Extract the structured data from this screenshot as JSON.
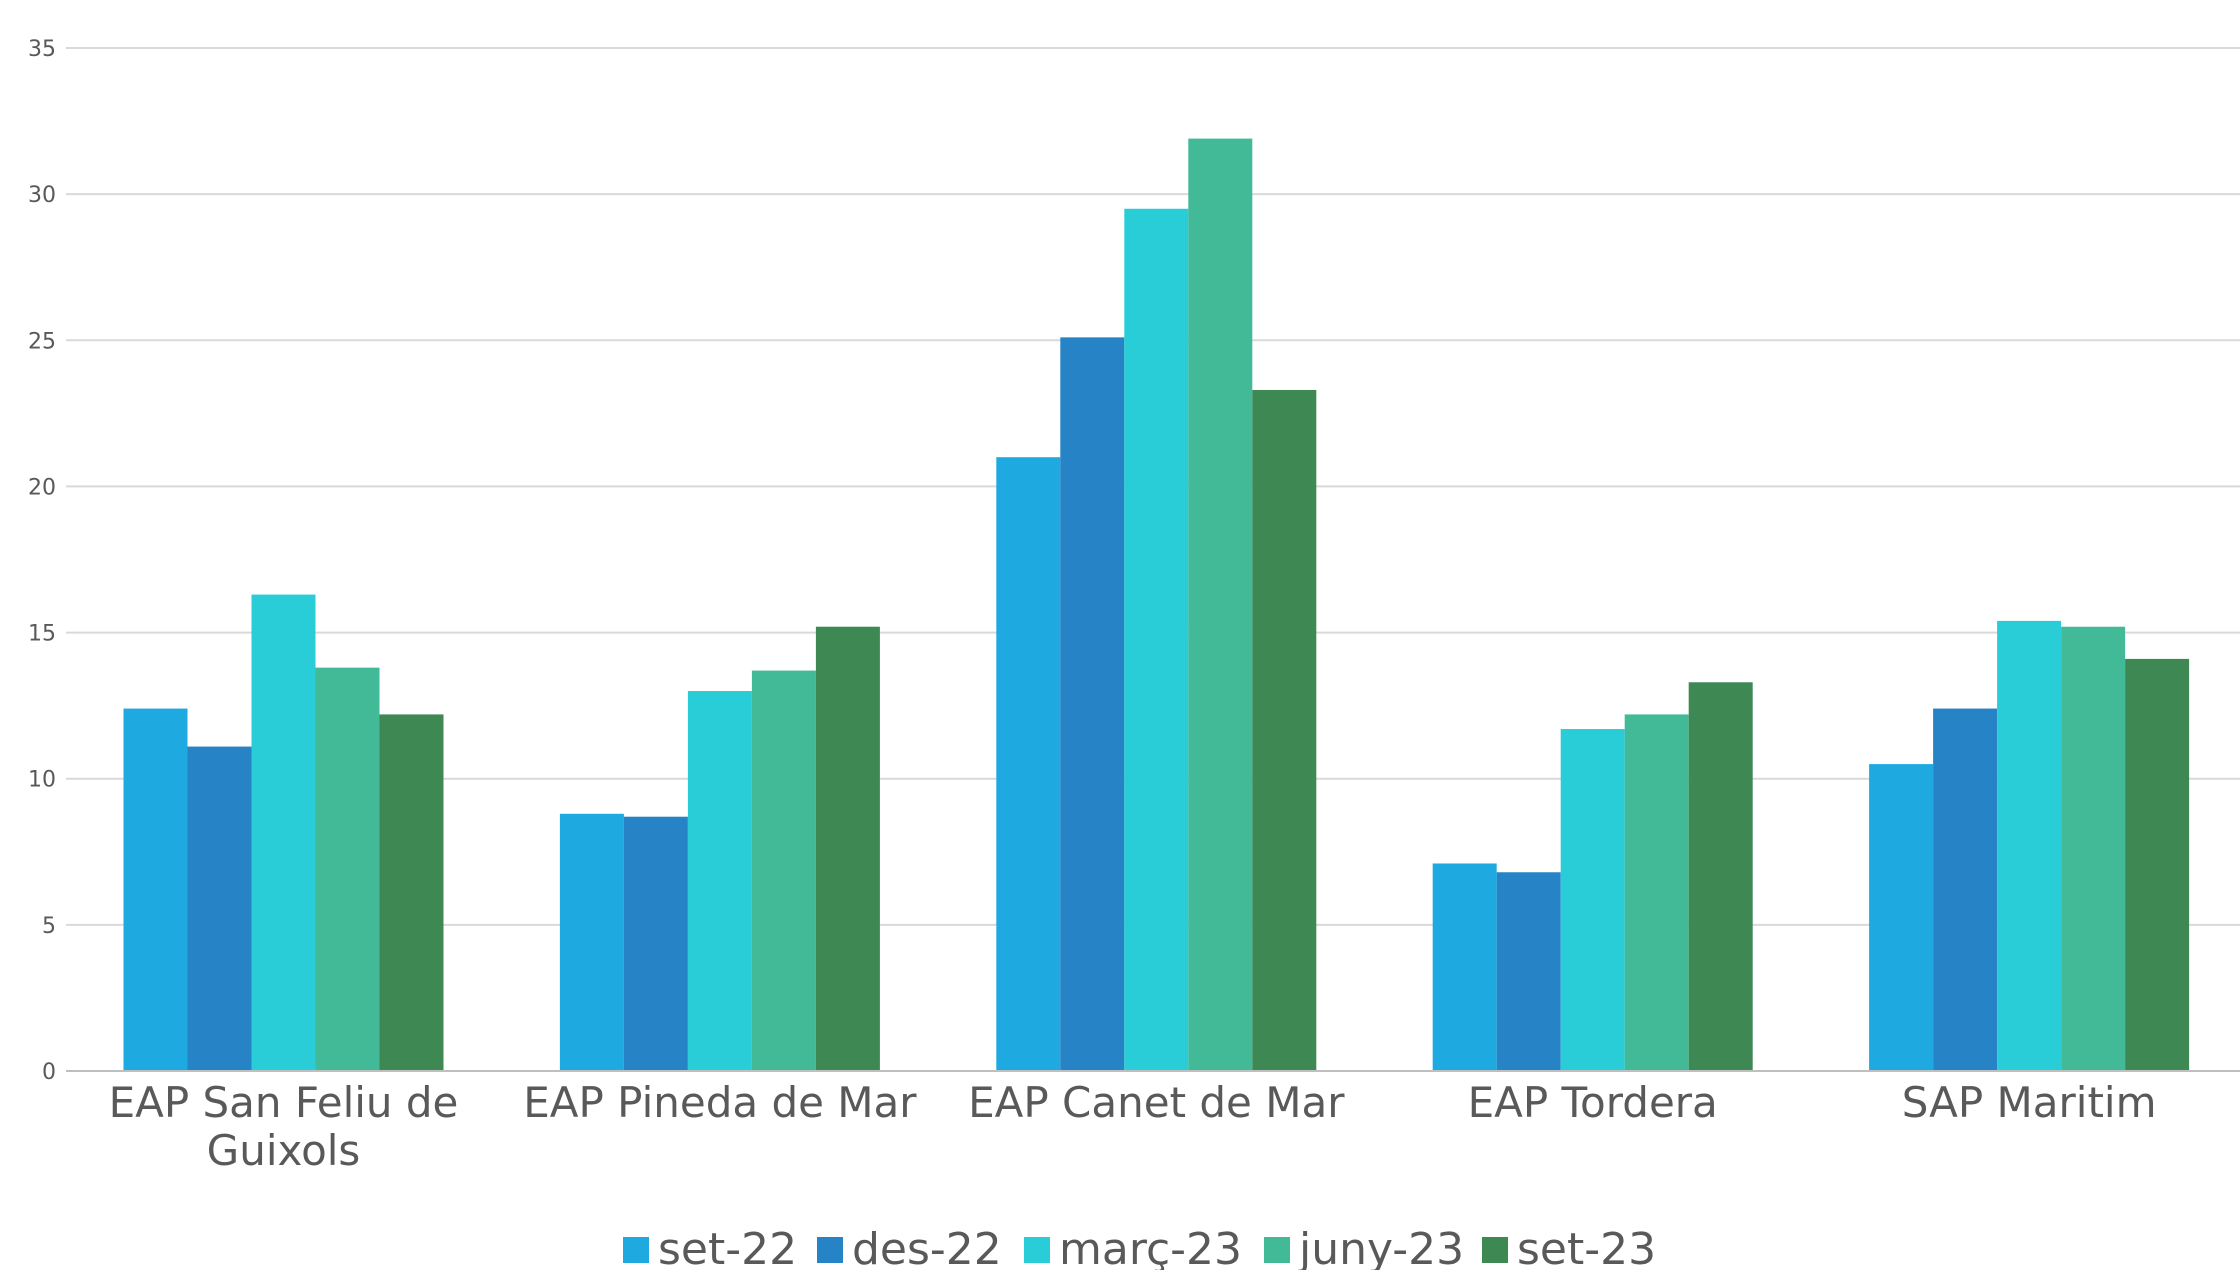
{
  "chart_data": {
    "type": "bar",
    "title": "",
    "xlabel": "",
    "ylabel": "",
    "ylim": [
      0,
      35
    ],
    "yticks": [
      "0",
      "5",
      "10",
      "15",
      "20",
      "25",
      "30",
      "35"
    ],
    "grid": true,
    "legend_position": "bottom",
    "categories": [
      [
        "EAP San Feliu de",
        "Guixols"
      ],
      [
        "EAP Pineda de Mar"
      ],
      [
        "EAP Canet de Mar"
      ],
      [
        "EAP Tordera"
      ],
      [
        "SAP Maritim"
      ]
    ],
    "series": [
      {
        "name": "set-22",
        "color": "#1EAAE1",
        "values": [
          12.4,
          8.8,
          21.0,
          7.1,
          10.5
        ]
      },
      {
        "name": "des-22",
        "color": "#2683C6",
        "values": [
          11.1,
          8.7,
          25.1,
          6.8,
          12.4
        ]
      },
      {
        "name": "març-23",
        "color": "#29CDD8",
        "values": [
          16.3,
          13.0,
          29.5,
          11.7,
          15.4
        ]
      },
      {
        "name": "juny-23",
        "color": "#42BA97",
        "values": [
          13.8,
          13.7,
          31.9,
          12.2,
          15.2
        ]
      },
      {
        "name": "set-23",
        "color": "#3E8853",
        "values": [
          12.2,
          15.2,
          23.3,
          13.3,
          14.1
        ]
      }
    ]
  }
}
